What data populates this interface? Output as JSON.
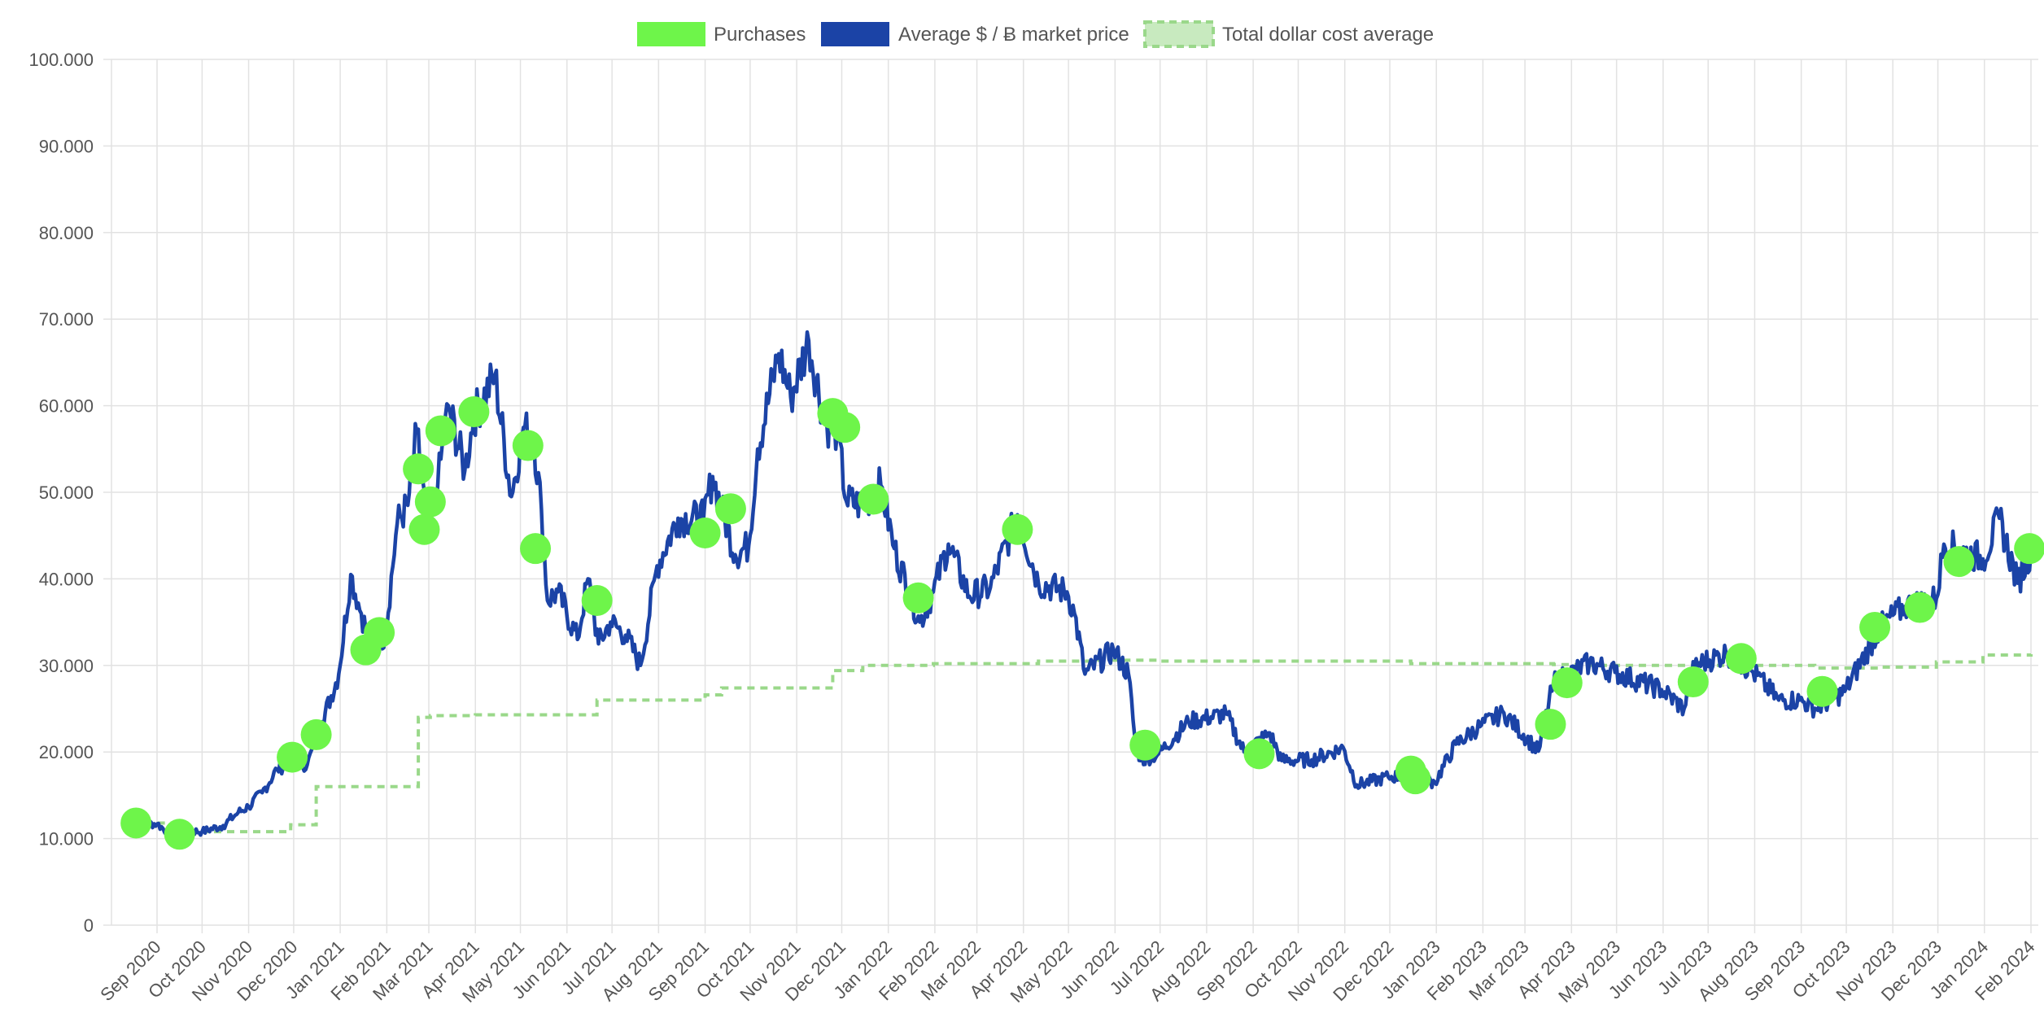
{
  "chart_data": {
    "type": "line",
    "legend": {
      "position": "top",
      "entries": [
        {
          "label": "Purchases",
          "color": "#6ef54a",
          "style": "filled"
        },
        {
          "label": "Average $ / Ƀ market price",
          "color": "#1b43a6",
          "style": "filled"
        },
        {
          "label": "Total dollar cost average",
          "color": "#9ad88a",
          "style": "dashed"
        }
      ]
    },
    "y_axis": {
      "range": [
        0,
        100000
      ],
      "tick_values": [
        0,
        10000,
        20000,
        30000,
        40000,
        50000,
        60000,
        70000,
        80000,
        90000,
        100000
      ],
      "tick_labels": [
        "0",
        "10.000",
        "20.000",
        "30.000",
        "40.000",
        "50.000",
        "60.000",
        "70.000",
        "80.000",
        "90.000",
        "100.000"
      ]
    },
    "x_axis": {
      "range": [
        "2020-08-15",
        "2024-02-01"
      ],
      "tick_dates": [
        "2020-09-01",
        "2020-10-01",
        "2020-11-01",
        "2020-12-01",
        "2021-01-01",
        "2021-02-01",
        "2021-03-01",
        "2021-04-01",
        "2021-05-01",
        "2021-06-01",
        "2021-07-01",
        "2021-08-01",
        "2021-09-01",
        "2021-10-01",
        "2021-11-01",
        "2021-12-01",
        "2022-01-01",
        "2022-02-01",
        "2022-03-01",
        "2022-04-01",
        "2022-05-01",
        "2022-06-01",
        "2022-07-01",
        "2022-08-01",
        "2022-09-01",
        "2022-10-01",
        "2022-11-01",
        "2022-12-01",
        "2023-01-01",
        "2023-02-01",
        "2023-03-01",
        "2023-04-01",
        "2023-05-01",
        "2023-06-01",
        "2023-07-01",
        "2023-08-01",
        "2023-09-01",
        "2023-10-01",
        "2023-11-01",
        "2023-12-01",
        "2024-01-01",
        "2024-02-01"
      ],
      "tick_labels": [
        "Sep 2020",
        "Oct 2020",
        "Nov 2020",
        "Dec 2020",
        "Jan 2021",
        "Feb 2021",
        "Mar 2021",
        "Apr 2021",
        "May 2021",
        "Jun 2021",
        "Jul 2021",
        "Aug 2021",
        "Sep 2021",
        "Oct 2021",
        "Nov 2021",
        "Dec 2021",
        "Jan 2022",
        "Feb 2022",
        "Mar 2022",
        "Apr 2022",
        "May 2022",
        "Jun 2022",
        "Jul 2022",
        "Aug 2022",
        "Sep 2022",
        "Oct 2022",
        "Nov 2022",
        "Dec 2022",
        "Jan 2023",
        "Feb 2023",
        "Mar 2023",
        "Apr 2023",
        "May 2023",
        "Jun 2023",
        "Jul 2023",
        "Aug 2023",
        "Sep 2023",
        "Oct 2023",
        "Nov 2023",
        "Dec 2023",
        "Jan 2024",
        "Feb 2024"
      ],
      "tick_rotation_deg": -45
    },
    "grid": true,
    "series": [
      {
        "name": "Average $ / Ƀ market price",
        "type": "line",
        "color": "#1b43a6",
        "points": [
          [
            "2020-08-15",
            11800
          ],
          [
            "2020-09-01",
            11700
          ],
          [
            "2020-09-10",
            10500
          ],
          [
            "2020-09-20",
            10900
          ],
          [
            "2020-10-01",
            10800
          ],
          [
            "2020-10-15",
            11500
          ],
          [
            "2020-10-25",
            13000
          ],
          [
            "2020-11-01",
            13700
          ],
          [
            "2020-11-10",
            15300
          ],
          [
            "2020-11-20",
            18000
          ],
          [
            "2020-11-30",
            19000
          ],
          [
            "2020-12-10",
            18500
          ],
          [
            "2020-12-20",
            23500
          ],
          [
            "2020-12-31",
            29000
          ],
          [
            "2021-01-08",
            40500
          ],
          [
            "2021-01-15",
            36000
          ],
          [
            "2021-01-22",
            32000
          ],
          [
            "2021-01-31",
            33500
          ],
          [
            "2021-02-08",
            46500
          ],
          [
            "2021-02-15",
            48500
          ],
          [
            "2021-02-21",
            57000
          ],
          [
            "2021-02-28",
            45500
          ],
          [
            "2021-03-07",
            51000
          ],
          [
            "2021-03-14",
            60000
          ],
          [
            "2021-03-25",
            52500
          ],
          [
            "2021-03-31",
            58800
          ],
          [
            "2021-04-14",
            63500
          ],
          [
            "2021-04-25",
            49500
          ],
          [
            "2021-05-03",
            57500
          ],
          [
            "2021-05-10",
            56000
          ],
          [
            "2021-05-15",
            48000
          ],
          [
            "2021-05-19",
            37500
          ],
          [
            "2021-05-26",
            38500
          ],
          [
            "2021-06-08",
            33000
          ],
          [
            "2021-06-15",
            40000
          ],
          [
            "2021-06-22",
            32500
          ],
          [
            "2021-06-30",
            35000
          ],
          [
            "2021-07-10",
            33500
          ],
          [
            "2021-07-20",
            30000
          ],
          [
            "2021-07-31",
            41500
          ],
          [
            "2021-08-14",
            47000
          ],
          [
            "2021-08-31",
            47000
          ],
          [
            "2021-09-06",
            51800
          ],
          [
            "2021-09-21",
            42800
          ],
          [
            "2021-09-30",
            43800
          ],
          [
            "2021-10-06",
            55000
          ],
          [
            "2021-10-20",
            66000
          ],
          [
            "2021-10-28",
            61000
          ],
          [
            "2021-11-09",
            67500
          ],
          [
            "2021-11-20",
            58000
          ],
          [
            "2021-11-28",
            57000
          ],
          [
            "2021-12-04",
            49000
          ],
          [
            "2021-12-15",
            48500
          ],
          [
            "2021-12-27",
            50800
          ],
          [
            "2022-01-05",
            43500
          ],
          [
            "2022-01-22",
            35000
          ],
          [
            "2022-01-31",
            38500
          ],
          [
            "2022-02-10",
            44000
          ],
          [
            "2022-02-24",
            38000
          ],
          [
            "2022-03-10",
            39000
          ],
          [
            "2022-03-28",
            47400
          ],
          [
            "2022-04-11",
            39500
          ],
          [
            "2022-04-30",
            38500
          ],
          [
            "2022-05-05",
            36000
          ],
          [
            "2022-05-12",
            29000
          ],
          [
            "2022-05-31",
            31800
          ],
          [
            "2022-06-10",
            29000
          ],
          [
            "2022-06-14",
            22000
          ],
          [
            "2022-06-18",
            19000
          ],
          [
            "2022-06-30",
            19800
          ],
          [
            "2022-07-20",
            23500
          ],
          [
            "2022-08-14",
            24400
          ],
          [
            "2022-08-26",
            20000
          ],
          [
            "2022-09-12",
            22200
          ],
          [
            "2022-09-20",
            19000
          ],
          [
            "2022-10-10",
            19100
          ],
          [
            "2022-10-31",
            20500
          ],
          [
            "2022-11-09",
            16200
          ],
          [
            "2022-11-30",
            17100
          ],
          [
            "2022-12-15",
            17300
          ],
          [
            "2022-12-31",
            16500
          ],
          [
            "2023-01-14",
            20900
          ],
          [
            "2023-01-31",
            23100
          ],
          [
            "2023-02-15",
            24500
          ],
          [
            "2023-03-10",
            20100
          ],
          [
            "2023-03-20",
            28000
          ],
          [
            "2023-04-13",
            30300
          ],
          [
            "2023-04-30",
            29200
          ],
          [
            "2023-05-31",
            27200
          ],
          [
            "2023-06-15",
            25000
          ],
          [
            "2023-06-22",
            30000
          ],
          [
            "2023-07-13",
            31400
          ],
          [
            "2023-07-31",
            29200
          ],
          [
            "2023-08-17",
            26000
          ],
          [
            "2023-08-31",
            26000
          ],
          [
            "2023-09-11",
            25000
          ],
          [
            "2023-09-30",
            27000
          ],
          [
            "2023-10-24",
            34500
          ],
          [
            "2023-11-09",
            36800
          ],
          [
            "2023-11-30",
            37700
          ],
          [
            "2023-12-05",
            44000
          ],
          [
            "2023-12-31",
            42300
          ],
          [
            "2024-01-11",
            47000
          ],
          [
            "2024-01-23",
            39500
          ],
          [
            "2024-02-01",
            43200
          ]
        ]
      },
      {
        "name": "Total dollar cost average",
        "type": "step-dashed",
        "color": "#9ad88a",
        "points": [
          [
            "2020-08-15",
            11800
          ],
          [
            "2020-09-16",
            10800
          ],
          [
            "2020-11-29",
            11600
          ],
          [
            "2020-12-16",
            16000
          ],
          [
            "2021-02-22",
            24000
          ],
          [
            "2021-03-02",
            24200
          ],
          [
            "2021-04-01",
            24300
          ],
          [
            "2021-06-21",
            26000
          ],
          [
            "2021-09-01",
            26600
          ],
          [
            "2021-09-12",
            27400
          ],
          [
            "2021-11-25",
            29400
          ],
          [
            "2021-12-15",
            30000
          ],
          [
            "2022-01-31",
            30200
          ],
          [
            "2022-04-11",
            30500
          ],
          [
            "2022-05-20",
            30600
          ],
          [
            "2022-07-01",
            30500
          ],
          [
            "2022-09-20",
            30500
          ],
          [
            "2022-12-15",
            30200
          ],
          [
            "2023-03-20",
            30100
          ],
          [
            "2023-04-15",
            30000
          ],
          [
            "2023-06-30",
            30000
          ],
          [
            "2023-09-10",
            29700
          ],
          [
            "2023-10-24",
            29800
          ],
          [
            "2023-11-30",
            30400
          ],
          [
            "2023-12-31",
            31200
          ],
          [
            "2024-02-01",
            31300
          ]
        ]
      },
      {
        "name": "Purchases",
        "type": "scatter",
        "color": "#6ef54a",
        "points": [
          [
            "2020-08-18",
            11800
          ],
          [
            "2020-09-16",
            10500
          ],
          [
            "2020-11-30",
            19400
          ],
          [
            "2020-12-16",
            22000
          ],
          [
            "2021-01-18",
            31800
          ],
          [
            "2021-01-27",
            33800
          ],
          [
            "2021-02-22",
            52700
          ],
          [
            "2021-02-26",
            45700
          ],
          [
            "2021-03-02",
            48900
          ],
          [
            "2021-03-09",
            57100
          ],
          [
            "2021-03-31",
            59300
          ],
          [
            "2021-05-06",
            55400
          ],
          [
            "2021-05-11",
            43500
          ],
          [
            "2021-06-21",
            37500
          ],
          [
            "2021-09-01",
            45300
          ],
          [
            "2021-09-18",
            48100
          ],
          [
            "2021-11-25",
            59100
          ],
          [
            "2021-12-03",
            57500
          ],
          [
            "2021-12-22",
            49200
          ],
          [
            "2022-01-21",
            37800
          ],
          [
            "2022-03-28",
            45700
          ],
          [
            "2022-06-21",
            20800
          ],
          [
            "2022-09-05",
            19800
          ],
          [
            "2022-12-15",
            17800
          ],
          [
            "2022-12-18",
            16900
          ],
          [
            "2023-03-18",
            23200
          ],
          [
            "2023-03-29",
            28000
          ],
          [
            "2023-06-21",
            28100
          ],
          [
            "2023-07-23",
            30800
          ],
          [
            "2023-09-15",
            27000
          ],
          [
            "2023-10-20",
            34400
          ],
          [
            "2023-11-19",
            36700
          ],
          [
            "2023-12-15",
            42000
          ],
          [
            "2024-01-31",
            43500
          ]
        ]
      }
    ]
  }
}
